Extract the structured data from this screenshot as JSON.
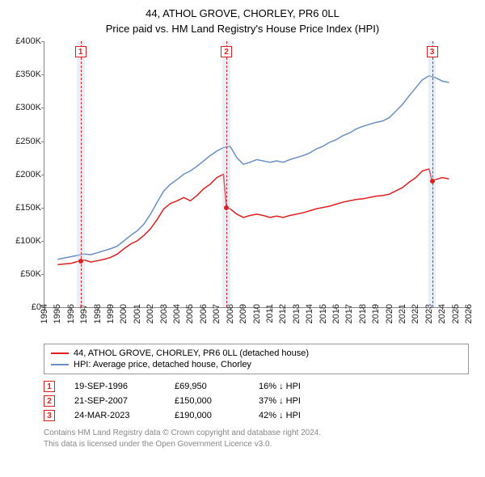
{
  "title": "44, ATHOL GROVE, CHORLEY, PR6 0LL",
  "subtitle": "Price paid vs. HM Land Registry's House Price Index (HPI)",
  "chart": {
    "type": "line",
    "background_color": "#ffffff",
    "axis_color": "#888888",
    "text_color": "#222222",
    "x": {
      "min": 1994,
      "max": 2026,
      "tick_step": 1,
      "label_fontsize": 11
    },
    "y": {
      "min": 0,
      "max": 400000,
      "tick_step": 50000,
      "tick_labels": [
        "£0",
        "£50K",
        "£100K",
        "£150K",
        "£200K",
        "£250K",
        "£300K",
        "£350K",
        "£400K"
      ],
      "label_fontsize": 11
    },
    "series": [
      {
        "id": "price_paid",
        "label": "44, ATHOL GROVE, CHORLEY, PR6 0LL (detached house)",
        "color": "#e02020",
        "line_width": 1.5,
        "points": [
          [
            1995.0,
            64000
          ],
          [
            1995.5,
            65000
          ],
          [
            1996.0,
            66000
          ],
          [
            1996.7,
            69950
          ],
          [
            1997.0,
            71000
          ],
          [
            1997.5,
            68000
          ],
          [
            1998.0,
            70000
          ],
          [
            1998.5,
            72000
          ],
          [
            1999.0,
            75000
          ],
          [
            1999.5,
            80000
          ],
          [
            2000.0,
            88000
          ],
          [
            2000.5,
            95000
          ],
          [
            2001.0,
            100000
          ],
          [
            2001.5,
            108000
          ],
          [
            2002.0,
            118000
          ],
          [
            2002.5,
            132000
          ],
          [
            2003.0,
            148000
          ],
          [
            2003.5,
            156000
          ],
          [
            2004.0,
            160000
          ],
          [
            2004.5,
            165000
          ],
          [
            2005.0,
            160000
          ],
          [
            2005.5,
            168000
          ],
          [
            2006.0,
            178000
          ],
          [
            2006.5,
            185000
          ],
          [
            2007.0,
            195000
          ],
          [
            2007.5,
            200000
          ],
          [
            2007.72,
            150000
          ],
          [
            2008.0,
            148000
          ],
          [
            2008.5,
            140000
          ],
          [
            2009.0,
            135000
          ],
          [
            2009.5,
            138000
          ],
          [
            2010.0,
            140000
          ],
          [
            2010.5,
            138000
          ],
          [
            2011.0,
            135000
          ],
          [
            2011.5,
            137000
          ],
          [
            2012.0,
            135000
          ],
          [
            2012.5,
            138000
          ],
          [
            2013.0,
            140000
          ],
          [
            2013.5,
            142000
          ],
          [
            2014.0,
            145000
          ],
          [
            2014.5,
            148000
          ],
          [
            2015.0,
            150000
          ],
          [
            2015.5,
            152000
          ],
          [
            2016.0,
            155000
          ],
          [
            2016.5,
            158000
          ],
          [
            2017.0,
            160000
          ],
          [
            2017.5,
            162000
          ],
          [
            2018.0,
            163000
          ],
          [
            2018.5,
            165000
          ],
          [
            2019.0,
            167000
          ],
          [
            2019.5,
            168000
          ],
          [
            2020.0,
            170000
          ],
          [
            2020.5,
            175000
          ],
          [
            2021.0,
            180000
          ],
          [
            2021.5,
            188000
          ],
          [
            2022.0,
            195000
          ],
          [
            2022.5,
            205000
          ],
          [
            2023.0,
            208000
          ],
          [
            2023.23,
            190000
          ],
          [
            2023.5,
            192000
          ],
          [
            2024.0,
            195000
          ],
          [
            2024.5,
            193000
          ]
        ]
      },
      {
        "id": "hpi",
        "label": "HPI: Average price, detached house, Chorley",
        "color": "#6a8fc5",
        "line_width": 1.5,
        "points": [
          [
            1995.0,
            72000
          ],
          [
            1995.5,
            74000
          ],
          [
            1996.0,
            76000
          ],
          [
            1996.5,
            78000
          ],
          [
            1997.0,
            80000
          ],
          [
            1997.5,
            79000
          ],
          [
            1998.0,
            82000
          ],
          [
            1998.5,
            85000
          ],
          [
            1999.0,
            88000
          ],
          [
            1999.5,
            92000
          ],
          [
            2000.0,
            100000
          ],
          [
            2000.5,
            108000
          ],
          [
            2001.0,
            115000
          ],
          [
            2001.5,
            125000
          ],
          [
            2002.0,
            140000
          ],
          [
            2002.5,
            158000
          ],
          [
            2003.0,
            175000
          ],
          [
            2003.5,
            185000
          ],
          [
            2004.0,
            192000
          ],
          [
            2004.5,
            200000
          ],
          [
            2005.0,
            205000
          ],
          [
            2005.5,
            212000
          ],
          [
            2006.0,
            220000
          ],
          [
            2006.5,
            228000
          ],
          [
            2007.0,
            235000
          ],
          [
            2007.5,
            240000
          ],
          [
            2008.0,
            242000
          ],
          [
            2008.5,
            225000
          ],
          [
            2009.0,
            215000
          ],
          [
            2009.5,
            218000
          ],
          [
            2010.0,
            222000
          ],
          [
            2010.5,
            220000
          ],
          [
            2011.0,
            218000
          ],
          [
            2011.5,
            220000
          ],
          [
            2012.0,
            218000
          ],
          [
            2012.5,
            222000
          ],
          [
            2013.0,
            225000
          ],
          [
            2013.5,
            228000
          ],
          [
            2014.0,
            232000
          ],
          [
            2014.5,
            238000
          ],
          [
            2015.0,
            242000
          ],
          [
            2015.5,
            248000
          ],
          [
            2016.0,
            252000
          ],
          [
            2016.5,
            258000
          ],
          [
            2017.0,
            262000
          ],
          [
            2017.5,
            268000
          ],
          [
            2018.0,
            272000
          ],
          [
            2018.5,
            275000
          ],
          [
            2019.0,
            278000
          ],
          [
            2019.5,
            280000
          ],
          [
            2020.0,
            285000
          ],
          [
            2020.5,
            295000
          ],
          [
            2021.0,
            305000
          ],
          [
            2021.5,
            318000
          ],
          [
            2022.0,
            330000
          ],
          [
            2022.5,
            342000
          ],
          [
            2023.0,
            348000
          ],
          [
            2023.5,
            345000
          ],
          [
            2024.0,
            340000
          ],
          [
            2024.5,
            338000
          ]
        ]
      }
    ],
    "markers": {
      "band_color": "rgba(190, 210, 235, 0.35)",
      "band_half_width_years": 0.3,
      "line_color": "#e02020",
      "badge_border": "#e02020",
      "badge_text_color": "#e02020",
      "items": [
        {
          "n": "1",
          "year": 1996.72,
          "price": 69950
        },
        {
          "n": "2",
          "year": 2007.72,
          "price": 150000
        },
        {
          "n": "3",
          "year": 2023.23,
          "price": 190000
        }
      ]
    }
  },
  "legend": {
    "border_color": "#999999",
    "rows": [
      {
        "color": "#e02020",
        "label": "44, ATHOL GROVE, CHORLEY, PR6 0LL (detached house)"
      },
      {
        "color": "#6a8fc5",
        "label": "HPI: Average price, detached house, Chorley"
      }
    ]
  },
  "sales": [
    {
      "n": "1",
      "date": "19-SEP-1996",
      "price": "£69,950",
      "diff": "16% ↓ HPI"
    },
    {
      "n": "2",
      "date": "21-SEP-2007",
      "price": "£150,000",
      "diff": "37% ↓ HPI"
    },
    {
      "n": "3",
      "date": "24-MAR-2023",
      "price": "£190,000",
      "diff": "42% ↓ HPI"
    }
  ],
  "footer": {
    "line1": "Contains HM Land Registry data © Crown copyright and database right 2024.",
    "line2": "This data is licensed under the Open Government Licence v3.0."
  }
}
